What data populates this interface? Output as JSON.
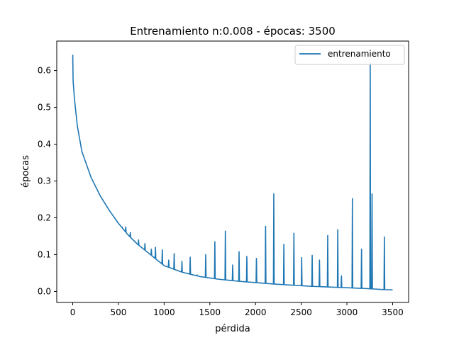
{
  "chart_data": {
    "type": "line",
    "title": "Entrenamiento n:0.008 - épocas: 3500",
    "xlabel": "pérdida",
    "ylabel": "épocas",
    "xlim": [
      -175,
      3675
    ],
    "ylim": [
      -0.03,
      0.68
    ],
    "xticks": [
      0,
      500,
      1000,
      1500,
      2000,
      2500,
      3000,
      3500
    ],
    "yticks": [
      0.0,
      0.1,
      0.2,
      0.3,
      0.4,
      0.5,
      0.6
    ],
    "grid": false,
    "legend_position": "top-right",
    "color": "#1f77b4",
    "series": [
      {
        "name": "entrenamiento",
        "color": "#1f77b4",
        "base_curve": {
          "x": [
            0,
            20,
            50,
            100,
            150,
            200,
            300,
            400,
            500,
            600,
            700,
            800,
            900,
            1000,
            1200,
            1400,
            1600,
            1800,
            2000,
            2200,
            2400,
            2600,
            2800,
            3000,
            3200,
            3400,
            3500
          ],
          "y": [
            0.585,
            0.52,
            0.45,
            0.38,
            0.345,
            0.31,
            0.26,
            0.22,
            0.185,
            0.155,
            0.13,
            0.11,
            0.09,
            0.07,
            0.052,
            0.04,
            0.033,
            0.028,
            0.024,
            0.02,
            0.017,
            0.014,
            0.012,
            0.01,
            0.008,
            0.005,
            0.004
          ]
        },
        "spikes": [
          {
            "x": 0,
            "y": 0.643
          },
          {
            "x": 540,
            "y": 0.175
          },
          {
            "x": 580,
            "y": 0.175
          },
          {
            "x": 630,
            "y": 0.16
          },
          {
            "x": 720,
            "y": 0.14
          },
          {
            "x": 790,
            "y": 0.13
          },
          {
            "x": 860,
            "y": 0.115
          },
          {
            "x": 905,
            "y": 0.12
          },
          {
            "x": 980,
            "y": 0.113
          },
          {
            "x": 1050,
            "y": 0.085
          },
          {
            "x": 1110,
            "y": 0.103
          },
          {
            "x": 1195,
            "y": 0.082
          },
          {
            "x": 1285,
            "y": 0.093
          },
          {
            "x": 1360,
            "y": 0.045
          },
          {
            "x": 1455,
            "y": 0.1
          },
          {
            "x": 1555,
            "y": 0.135
          },
          {
            "x": 1670,
            "y": 0.164
          },
          {
            "x": 1750,
            "y": 0.072
          },
          {
            "x": 1820,
            "y": 0.108
          },
          {
            "x": 1905,
            "y": 0.095
          },
          {
            "x": 2010,
            "y": 0.09
          },
          {
            "x": 2110,
            "y": 0.177
          },
          {
            "x": 2200,
            "y": 0.265
          },
          {
            "x": 2310,
            "y": 0.128
          },
          {
            "x": 2420,
            "y": 0.158
          },
          {
            "x": 2505,
            "y": 0.092
          },
          {
            "x": 2620,
            "y": 0.098
          },
          {
            "x": 2700,
            "y": 0.085
          },
          {
            "x": 2790,
            "y": 0.152
          },
          {
            "x": 2900,
            "y": 0.168
          },
          {
            "x": 2940,
            "y": 0.042
          },
          {
            "x": 3060,
            "y": 0.252
          },
          {
            "x": 3160,
            "y": 0.115
          },
          {
            "x": 3255,
            "y": 0.62
          },
          {
            "x": 3275,
            "y": 0.265
          },
          {
            "x": 3410,
            "y": 0.148
          }
        ]
      }
    ]
  }
}
